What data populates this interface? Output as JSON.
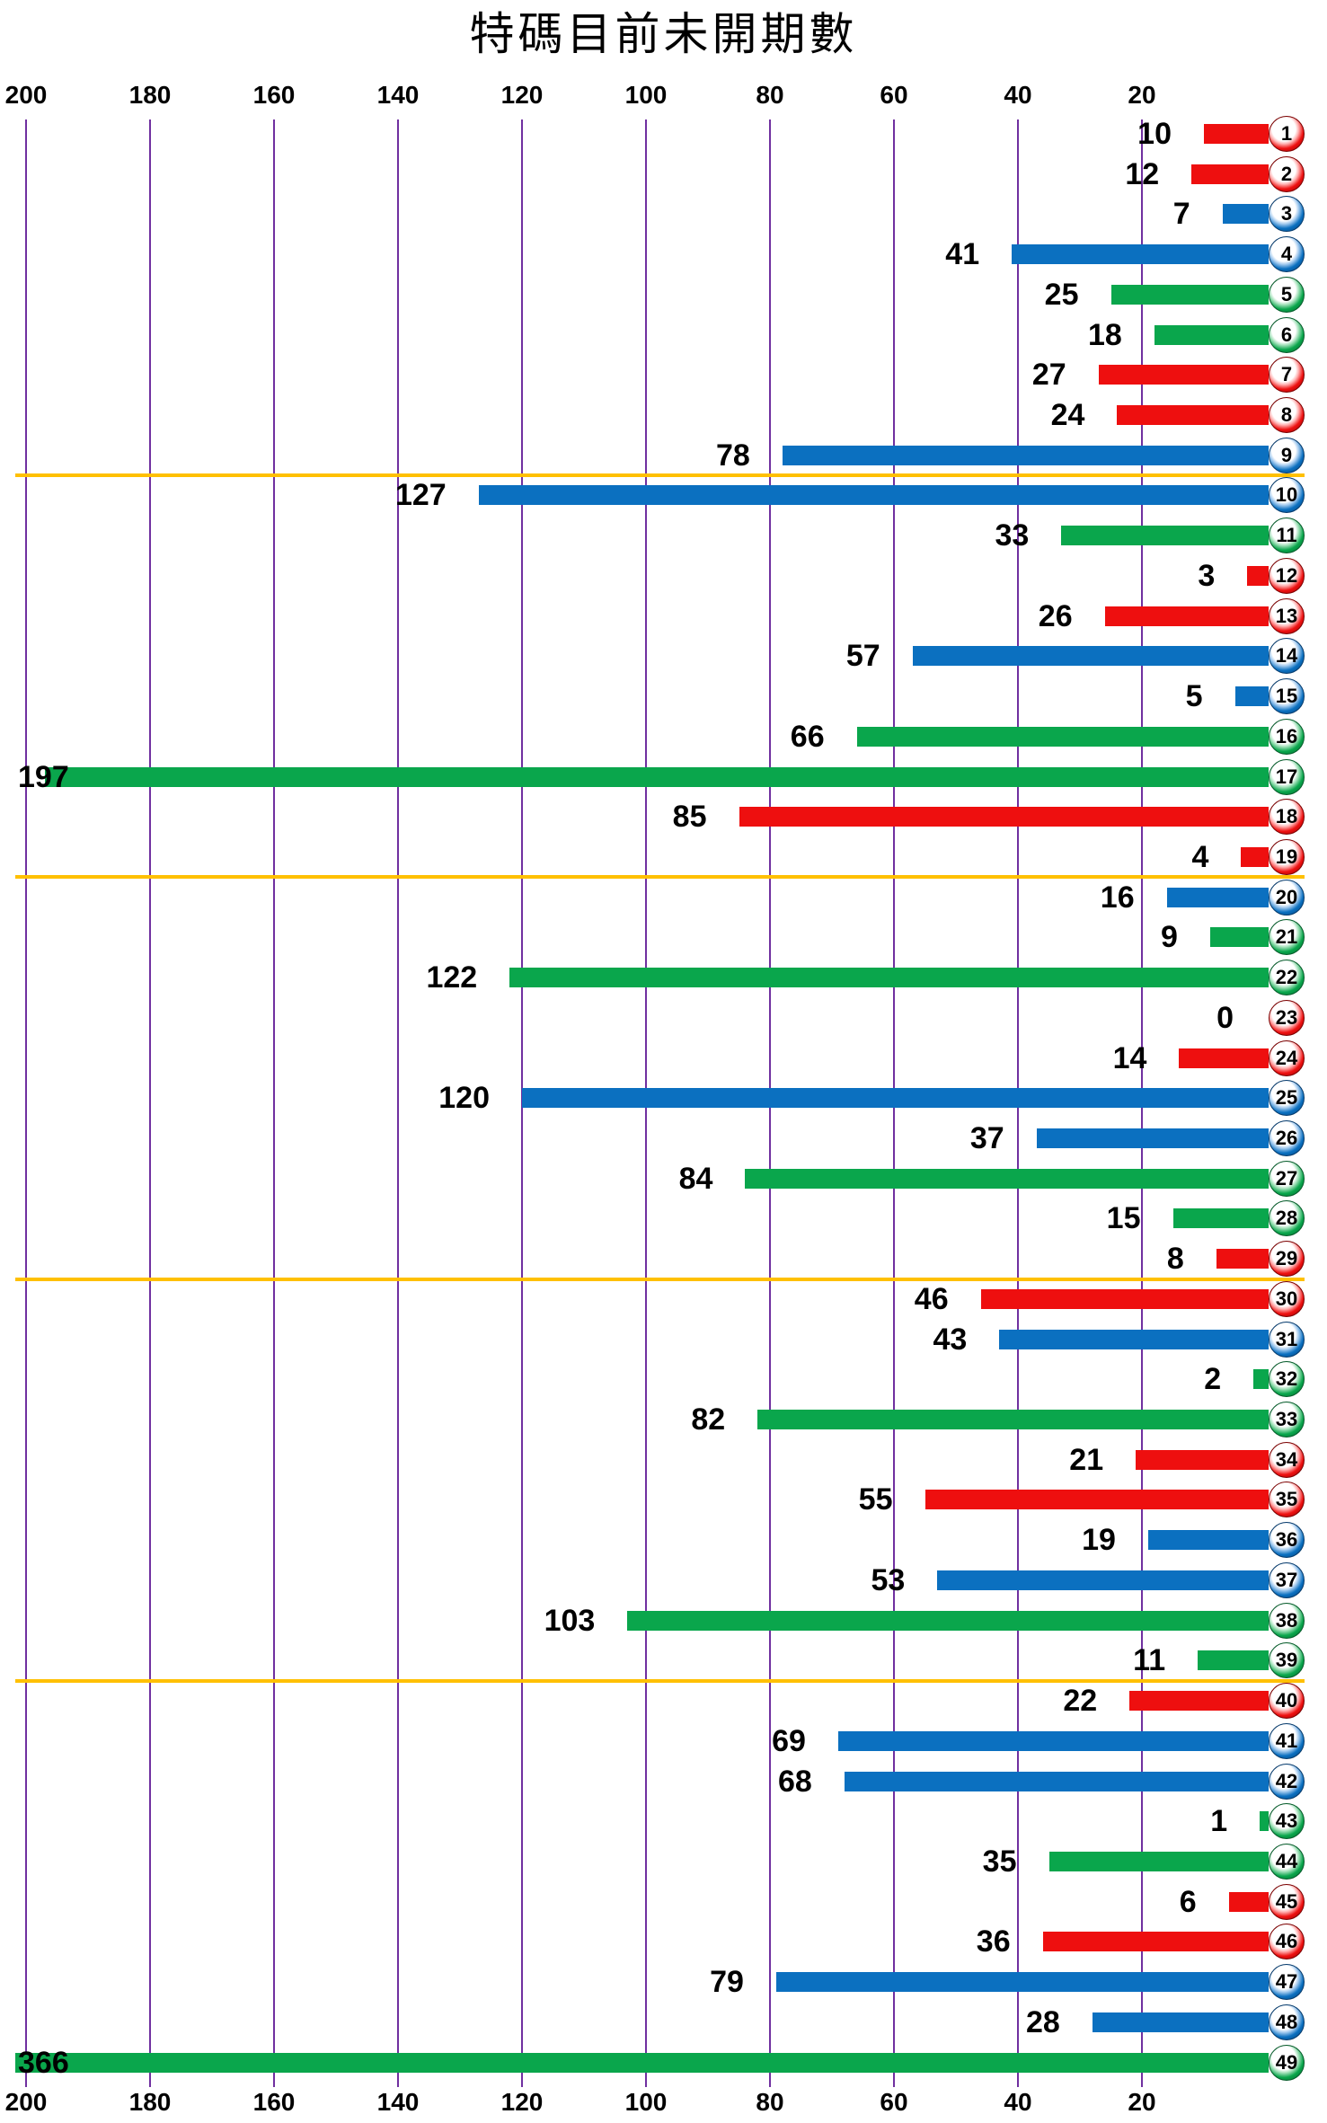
{
  "title": "特碼目前未開期數",
  "chart_data": {
    "type": "bar",
    "orientation": "horizontal",
    "title": "特碼目前未開期數",
    "x_axis": {
      "ticks": [
        200,
        180,
        160,
        140,
        120,
        100,
        80,
        60,
        40,
        20
      ],
      "min": 0,
      "max": 200,
      "direction": "values-increase-leftward",
      "tick_labels_position": "top and bottom",
      "grid": true
    },
    "legend": "none",
    "group_separators_after_numbers": [
      9,
      19,
      29,
      39
    ],
    "points": [
      {
        "number": 1,
        "value": 10,
        "color": "red"
      },
      {
        "number": 2,
        "value": 12,
        "color": "red"
      },
      {
        "number": 3,
        "value": 7,
        "color": "blue"
      },
      {
        "number": 4,
        "value": 41,
        "color": "blue"
      },
      {
        "number": 5,
        "value": 25,
        "color": "green"
      },
      {
        "number": 6,
        "value": 18,
        "color": "green"
      },
      {
        "number": 7,
        "value": 27,
        "color": "red"
      },
      {
        "number": 8,
        "value": 24,
        "color": "red"
      },
      {
        "number": 9,
        "value": 78,
        "color": "blue"
      },
      {
        "number": 10,
        "value": 127,
        "color": "blue"
      },
      {
        "number": 11,
        "value": 33,
        "color": "green"
      },
      {
        "number": 12,
        "value": 3,
        "color": "red"
      },
      {
        "number": 13,
        "value": 26,
        "color": "red"
      },
      {
        "number": 14,
        "value": 57,
        "color": "blue"
      },
      {
        "number": 15,
        "value": 5,
        "color": "blue"
      },
      {
        "number": 16,
        "value": 66,
        "color": "green"
      },
      {
        "number": 17,
        "value": 197,
        "color": "green"
      },
      {
        "number": 18,
        "value": 85,
        "color": "red"
      },
      {
        "number": 19,
        "value": 4,
        "color": "red"
      },
      {
        "number": 20,
        "value": 16,
        "color": "blue"
      },
      {
        "number": 21,
        "value": 9,
        "color": "green"
      },
      {
        "number": 22,
        "value": 122,
        "color": "green"
      },
      {
        "number": 23,
        "value": 0,
        "color": "red"
      },
      {
        "number": 24,
        "value": 14,
        "color": "red"
      },
      {
        "number": 25,
        "value": 120,
        "color": "blue"
      },
      {
        "number": 26,
        "value": 37,
        "color": "blue"
      },
      {
        "number": 27,
        "value": 84,
        "color": "green"
      },
      {
        "number": 28,
        "value": 15,
        "color": "green"
      },
      {
        "number": 29,
        "value": 8,
        "color": "red"
      },
      {
        "number": 30,
        "value": 46,
        "color": "red"
      },
      {
        "number": 31,
        "value": 43,
        "color": "blue"
      },
      {
        "number": 32,
        "value": 2,
        "color": "green"
      },
      {
        "number": 33,
        "value": 82,
        "color": "green"
      },
      {
        "number": 34,
        "value": 21,
        "color": "red"
      },
      {
        "number": 35,
        "value": 55,
        "color": "red"
      },
      {
        "number": 36,
        "value": 19,
        "color": "blue"
      },
      {
        "number": 37,
        "value": 53,
        "color": "blue"
      },
      {
        "number": 38,
        "value": 103,
        "color": "green"
      },
      {
        "number": 39,
        "value": 11,
        "color": "green"
      },
      {
        "number": 40,
        "value": 22,
        "color": "red"
      },
      {
        "number": 41,
        "value": 69,
        "color": "blue"
      },
      {
        "number": 42,
        "value": 68,
        "color": "blue"
      },
      {
        "number": 43,
        "value": 1,
        "color": "green"
      },
      {
        "number": 44,
        "value": 35,
        "color": "green"
      },
      {
        "number": 45,
        "value": 6,
        "color": "red"
      },
      {
        "number": 46,
        "value": 36,
        "color": "red"
      },
      {
        "number": 47,
        "value": 79,
        "color": "blue"
      },
      {
        "number": 48,
        "value": 28,
        "color": "blue"
      },
      {
        "number": 49,
        "value": 366,
        "color": "green"
      }
    ],
    "colors": {
      "red": "#ee0f0f",
      "blue": "#0b70c0",
      "green": "#0aa64c",
      "gridline": "#7030a0",
      "separator": "#ffc000",
      "value_label": "#000000",
      "ball_number": "#000000"
    }
  }
}
